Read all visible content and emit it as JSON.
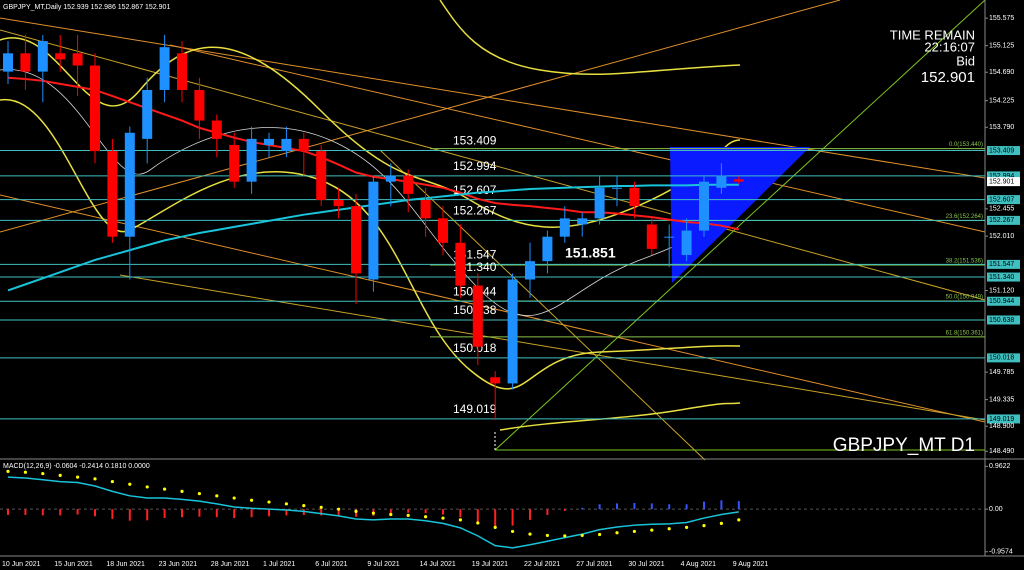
{
  "chart_data": [
    {
      "type": "candlestick",
      "title": "GBPJPY_MT,Daily  152.939 152.986 152.867 152.901",
      "categories": [
        "10 Jun 2021",
        null,
        null,
        "15 Jun 2021",
        null,
        null,
        "18 Jun 2021",
        null,
        null,
        "23 Jun 2021",
        null,
        null,
        "28 Jun 2021",
        null,
        null,
        "1 Jul 2021",
        null,
        null,
        "6 Jul 2021",
        null,
        null,
        "9 Jul 2021",
        null,
        null,
        "14 Jul 2021",
        null,
        null,
        "19 Jul 2021",
        null,
        null,
        "22 Jul 2021",
        null,
        null,
        "27 Jul 2021",
        null,
        null,
        "30 Jul 2021",
        null,
        null,
        "4 Aug 2021",
        null,
        null,
        "9 Aug 2021"
      ],
      "open": [
        154.7,
        155.0,
        154.7,
        155.0,
        155.0,
        154.8,
        153.4,
        152.0,
        153.6,
        154.4,
        155.0,
        154.4,
        153.9,
        153.5,
        152.9,
        153.5,
        153.4,
        153.6,
        153.4,
        152.6,
        152.5,
        151.3,
        152.9,
        153.0,
        152.6,
        152.3,
        151.9,
        151.2,
        149.7,
        149.6,
        151.3,
        151.6,
        152.0,
        152.2,
        152.3,
        152.8,
        152.8,
        152.2,
        152.0,
        151.7,
        152.1,
        152.8,
        152.939
      ],
      "high": [
        155.2,
        155.3,
        155.3,
        155.3,
        155.3,
        155.0,
        153.6,
        153.8,
        154.6,
        155.3,
        155.2,
        154.6,
        154.0,
        153.7,
        153.8,
        153.7,
        153.8,
        153.7,
        153.5,
        152.8,
        152.7,
        153.0,
        153.2,
        153.1,
        152.8,
        152.5,
        152.2,
        151.4,
        149.8,
        151.4,
        151.9,
        152.1,
        152.5,
        152.4,
        153.0,
        153.0,
        152.9,
        152.3,
        152.2,
        152.3,
        153.0,
        153.2,
        152.986
      ],
      "low": [
        154.5,
        154.4,
        154.2,
        154.7,
        154.3,
        153.2,
        151.9,
        151.3,
        153.2,
        154.2,
        154.2,
        153.6,
        153.3,
        152.8,
        152.7,
        153.3,
        153.3,
        153.0,
        152.5,
        152.3,
        150.9,
        151.1,
        152.5,
        152.4,
        152.0,
        151.7,
        151.0,
        149.9,
        149.0,
        149.5,
        151.0,
        151.4,
        151.9,
        152.0,
        152.2,
        152.5,
        152.3,
        151.7,
        151.5,
        151.6,
        152.0,
        152.7,
        152.867
      ],
      "close": [
        155.0,
        154.7,
        155.2,
        154.9,
        154.8,
        153.4,
        152.0,
        153.7,
        154.4,
        155.1,
        154.4,
        153.9,
        153.6,
        152.9,
        153.6,
        153.6,
        153.6,
        153.4,
        152.6,
        152.5,
        151.4,
        152.9,
        153.0,
        152.7,
        152.3,
        151.9,
        151.2,
        150.2,
        149.6,
        151.3,
        151.6,
        152.0,
        152.3,
        152.3,
        152.8,
        152.8,
        152.5,
        151.8,
        152.0,
        152.1,
        152.9,
        153.0,
        152.901
      ],
      "up_color": "#1e90ff",
      "down_color": "#ff0000",
      "moving_averages": [
        {
          "color": "#ff1a1a",
          "values": [
            154.6,
            154.58,
            154.55,
            154.5,
            154.45,
            154.4,
            154.3,
            154.2,
            154.1,
            154.0,
            153.9,
            153.78,
            153.7,
            153.62,
            153.55,
            153.5,
            153.45,
            153.4,
            153.3,
            153.18,
            153.05,
            152.98,
            152.94,
            152.9,
            152.85,
            152.8,
            152.72,
            152.62,
            152.55,
            152.52,
            152.5,
            152.47,
            152.44,
            152.4,
            152.4,
            152.38,
            152.35,
            152.32,
            152.28,
            152.24,
            152.22,
            152.18,
            152.12
          ]
        },
        {
          "color": "#19c3d9",
          "values": [
            151.12,
            151.22,
            151.32,
            151.42,
            151.52,
            151.62,
            151.7,
            151.78,
            151.86,
            151.94,
            152.0,
            152.06,
            152.11,
            152.16,
            152.21,
            152.26,
            152.31,
            152.36,
            152.4,
            152.44,
            152.48,
            152.52,
            152.56,
            152.6,
            152.63,
            152.66,
            152.69,
            152.72,
            152.74,
            152.76,
            152.78,
            152.79,
            152.8,
            152.81,
            152.82,
            152.83,
            152.83,
            152.84,
            152.84,
            152.84,
            152.85,
            152.85,
            152.85
          ]
        }
      ],
      "ylim": [
        148.38,
        155.79
      ],
      "yticks": [
        155.575,
        155.125,
        {
          "value": 154.69,
          "label": "154.690"
        },
        154.225,
        {
          "value": 153.79,
          "label": "153.790"
        },
        152.455,
        {
          "value": 152.01,
          "label": "152.010"
        },
        {
          "value": 151.12,
          "label": "151.120"
        },
        149.785,
        149.335,
        {
          "value": 148.9,
          "label": "148.900"
        },
        {
          "value": 148.49,
          "label": "148.490"
        }
      ],
      "levels": [
        {
          "value": 153.409,
          "label": "153.409"
        },
        {
          "value": 152.994,
          "label": "152.994"
        },
        {
          "value": 152.607,
          "label": "152.607"
        },
        {
          "value": 152.267,
          "label": "152.267"
        },
        {
          "value": 151.547,
          "label": "151.547"
        },
        {
          "value": 151.34,
          "label": "151.340"
        },
        {
          "value": 150.944,
          "label": "150.944"
        },
        {
          "value": 150.638,
          "label": "150.638"
        },
        {
          "value": 150.018,
          "label": "150.018"
        },
        {
          "value": 149.019,
          "label": "149.019"
        }
      ],
      "level_color": "#3fbfbf",
      "fibonacci": [
        {
          "value": 153.44,
          "label": "0.0(153.440)"
        },
        {
          "value": 152.264,
          "label": "23.6(152.264)"
        },
        {
          "value": 151.536,
          "label": "38.2(151.536)"
        },
        {
          "value": 150.949,
          "label": "50.0(150.949)"
        },
        {
          "value": 150.361,
          "label": "61.8(150.361)"
        }
      ],
      "fib_color": "#8bc34a",
      "bid": {
        "value": 152.901,
        "label": "152.901"
      },
      "annotation": "151.851",
      "time_remain_label": "TIME REMAIN",
      "time_remain": "22:16:07",
      "bid_label": "Bid",
      "watermark": "GBPJPY_MT D1"
    },
    {
      "type": "macd",
      "title": "MACD(12,26,9) -0.0604 -0.2414 0.1810 0.0000",
      "histogram": {
        "color_up": "#3355ff",
        "color_down": "#ff2020",
        "values": [
          -0.13,
          -0.13,
          -0.14,
          -0.14,
          -0.12,
          -0.16,
          -0.22,
          -0.26,
          -0.25,
          -0.2,
          -0.18,
          -0.17,
          -0.18,
          -0.2,
          -0.18,
          -0.16,
          -0.14,
          -0.13,
          -0.14,
          -0.15,
          -0.17,
          -0.15,
          -0.1,
          -0.08,
          -0.09,
          -0.12,
          -0.18,
          -0.29,
          -0.41,
          -0.37,
          -0.24,
          -0.13,
          -0.04,
          0.03,
          0.11,
          0.13,
          0.14,
          0.13,
          0.11,
          0.11,
          0.17,
          0.2,
          0.181
        ]
      },
      "main": {
        "color": "#19c3d9",
        "values": [
          0.72,
          0.7,
          0.66,
          0.62,
          0.6,
          0.52,
          0.4,
          0.3,
          0.25,
          0.25,
          0.22,
          0.18,
          0.12,
          0.05,
          0.02,
          0.0,
          -0.02,
          -0.05,
          -0.1,
          -0.15,
          -0.22,
          -0.24,
          -0.22,
          -0.22,
          -0.26,
          -0.32,
          -0.42,
          -0.6,
          -0.82,
          -0.87,
          -0.8,
          -0.72,
          -0.64,
          -0.56,
          -0.46,
          -0.4,
          -0.36,
          -0.34,
          -0.33,
          -0.3,
          -0.2,
          -0.12,
          -0.0604
        ]
      },
      "signal": {
        "color": "#ffff00",
        "values": [
          0.85,
          0.83,
          0.8,
          0.76,
          0.72,
          0.68,
          0.62,
          0.56,
          0.5,
          0.45,
          0.4,
          0.35,
          0.3,
          0.25,
          0.2,
          0.16,
          0.12,
          0.08,
          0.04,
          0.0,
          -0.05,
          -0.09,
          -0.12,
          -0.14,
          -0.17,
          -0.2,
          -0.24,
          -0.31,
          -0.41,
          -0.5,
          -0.56,
          -0.59,
          -0.6,
          -0.59,
          -0.57,
          -0.53,
          -0.5,
          -0.47,
          -0.44,
          -0.41,
          -0.37,
          -0.32,
          -0.2414
        ]
      },
      "ylim": [
        -1.03,
        1.06
      ],
      "yticks": [
        0.9622,
        {
          "value": 0,
          "label": "0.00"
        },
        -0.9574
      ]
    }
  ]
}
